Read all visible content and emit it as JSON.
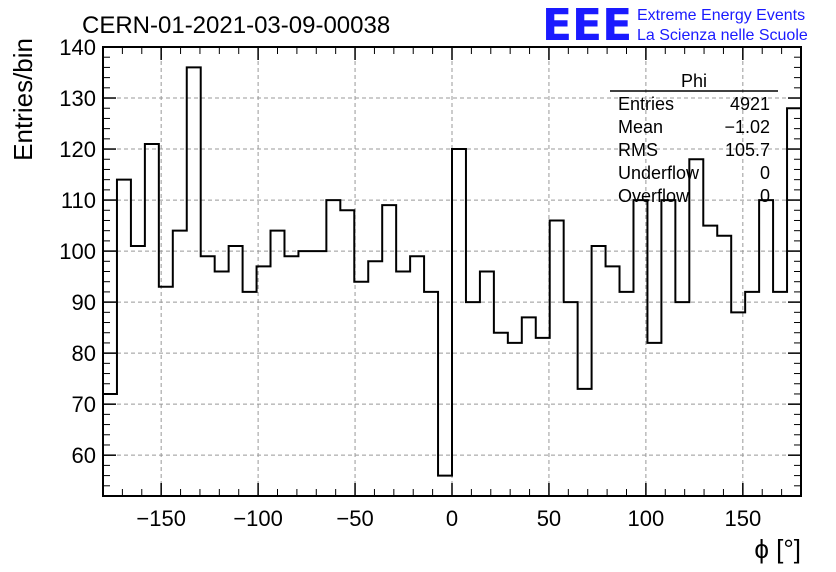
{
  "header": {
    "run_title": "CERN-01-2021-03-09-00038",
    "logo_text": "EEE",
    "logo_line1": "Extreme Energy Events",
    "logo_line2": "La Scienza nelle Scuole",
    "logo_color": "#1a1aff"
  },
  "stats_box": {
    "title": "Phi",
    "rows": [
      {
        "label": "Entries",
        "value": "4921"
      },
      {
        "label": "Mean",
        "value": "−1.02"
      },
      {
        "label": "RMS",
        "value": "105.7"
      },
      {
        "label": "Underflow",
        "value": "0"
      },
      {
        "label": "Overflow",
        "value": "0"
      }
    ]
  },
  "chart_data": {
    "type": "histogram",
    "title": "CERN-01-2021-03-09-00038",
    "xlabel": "ϕ [°]",
    "ylabel": "Entries/bin",
    "xlim": [
      -180,
      180
    ],
    "ylim": [
      52,
      140
    ],
    "bin_width": 7.2,
    "grid": true,
    "x_ticks": [
      -150,
      -100,
      -50,
      0,
      50,
      100,
      150
    ],
    "x_tick_labels": [
      "−150",
      "−100",
      "−50",
      "0",
      "50",
      "100",
      "150"
    ],
    "y_ticks": [
      60,
      70,
      80,
      90,
      100,
      110,
      120,
      130,
      140
    ],
    "y_tick_labels": [
      "60",
      "70",
      "80",
      "90",
      "100",
      "110",
      "120",
      "130",
      "140"
    ],
    "values": [
      72,
      114,
      101,
      121,
      93,
      104,
      136,
      99,
      96,
      101,
      92,
      97,
      104,
      99,
      100,
      100,
      110,
      108,
      94,
      98,
      109,
      96,
      99,
      92,
      56,
      120,
      90,
      96,
      84,
      82,
      87,
      83,
      106,
      90,
      73,
      101,
      97,
      92,
      110,
      82,
      110,
      90,
      118,
      105,
      103,
      88,
      92,
      110,
      92,
      128
    ],
    "line_color": "#000000",
    "grid_color": "#999999"
  }
}
